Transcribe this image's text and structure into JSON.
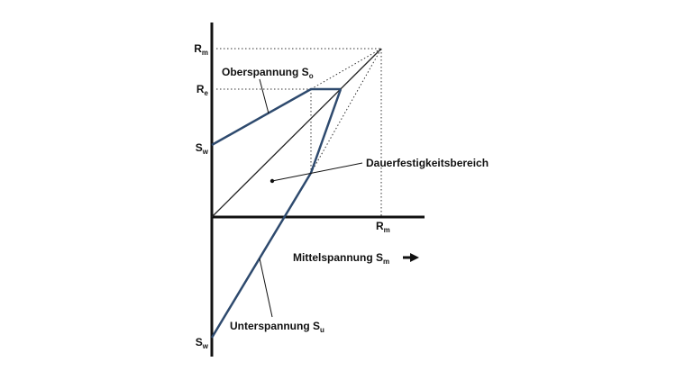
{
  "labels": {
    "rm_axis": {
      "main": "R",
      "sub": "m"
    },
    "re_axis": {
      "main": "R",
      "sub": "e"
    },
    "sw_top": {
      "main": "S",
      "sub": "w"
    },
    "sw_bottom": {
      "main": "S",
      "sub": "w"
    },
    "rm_x": {
      "main": "R",
      "sub": "m"
    },
    "oberspannung": {
      "main": "Oberspannung S",
      "sub": "o"
    },
    "unterspannung": {
      "main": "Unterspannung S",
      "sub": "u"
    },
    "mittelspannung": {
      "main": "Mittelspannung S",
      "sub": "m"
    },
    "bereich": {
      "main": "Dauerfestigkeitsbereich"
    }
  }
}
